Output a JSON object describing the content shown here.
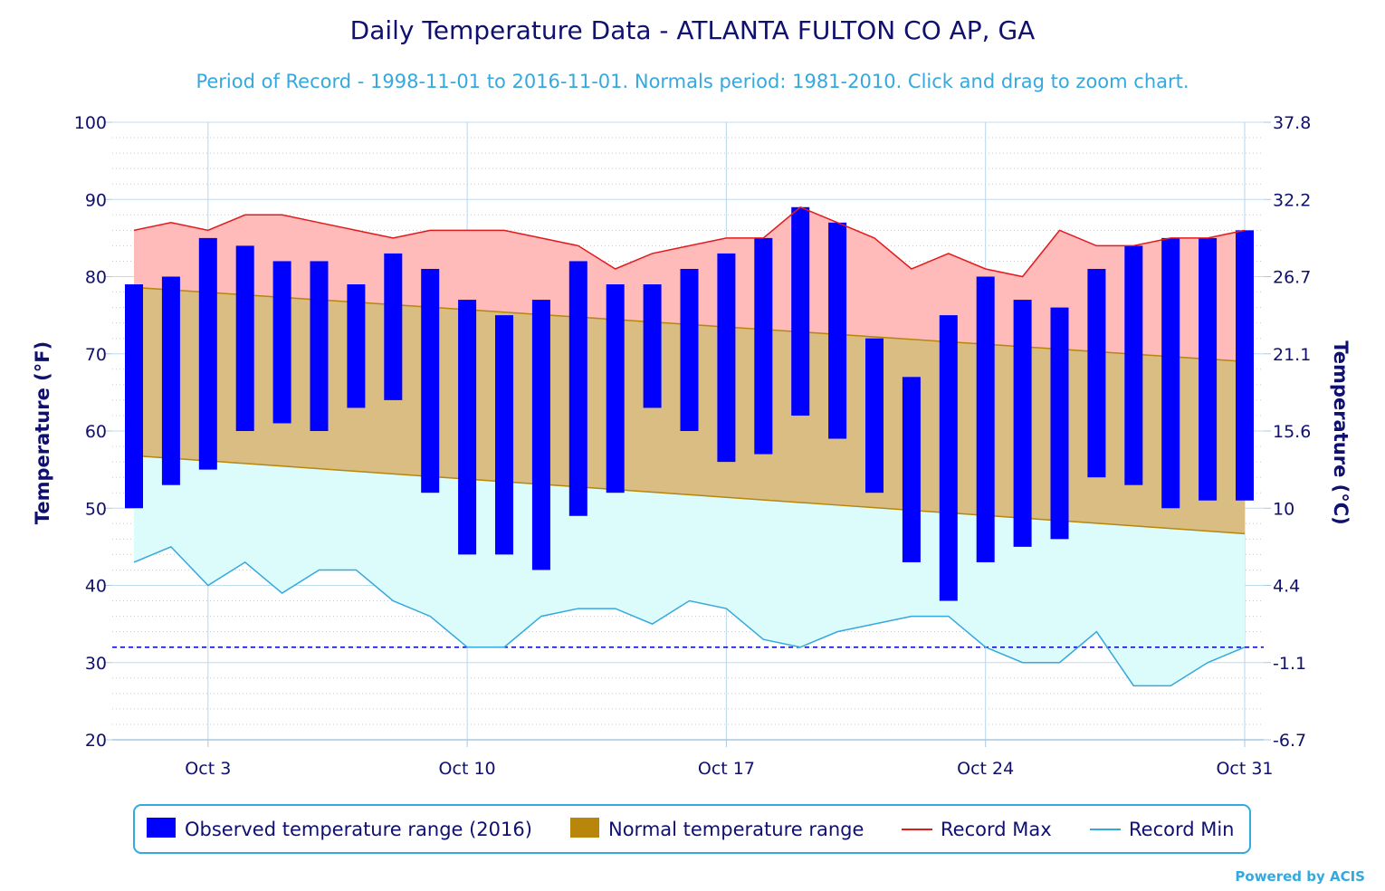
{
  "chart_data": {
    "type": "bar",
    "title": "Daily Temperature Data - ATLANTA FULTON CO AP, GA",
    "subtitle": "Period of Record - 1998-11-01 to 2016-11-01. Normals period: 1981-2010. Click and drag to zoom chart.",
    "ylabel": "Temperature (°F)",
    "ylabel_right": "Temperature (°C)",
    "ylim": [
      20,
      100
    ],
    "y_ticks": [
      20,
      30,
      40,
      50,
      60,
      70,
      80,
      90,
      100
    ],
    "y_ticks_right": [
      "-6.7",
      "-1.1",
      "4.4",
      "10",
      "15.6",
      "21.1",
      "26.7",
      "32.2",
      "37.8"
    ],
    "x_ticks": [
      {
        "day": 3,
        "label": "Oct 3"
      },
      {
        "day": 10,
        "label": "Oct 10"
      },
      {
        "day": 17,
        "label": "Oct 17"
      },
      {
        "day": 24,
        "label": "Oct 24"
      },
      {
        "day": 31,
        "label": "Oct 31"
      }
    ],
    "freezing_line": 32,
    "grid": true,
    "legend_position": "bottom",
    "days": [
      1,
      2,
      3,
      4,
      5,
      6,
      7,
      8,
      9,
      10,
      11,
      12,
      13,
      14,
      15,
      16,
      17,
      18,
      19,
      20,
      21,
      22,
      23,
      24,
      25,
      26,
      27,
      28,
      29,
      30,
      31
    ],
    "series": [
      {
        "name": "Observed temperature range (2016)",
        "color": "#0000ff",
        "high": [
          79,
          80,
          85,
          84,
          82,
          82,
          79,
          83,
          81,
          77,
          75,
          77,
          82,
          79,
          79,
          81,
          83,
          85,
          89,
          87,
          72,
          67,
          75,
          80,
          77,
          76,
          81,
          84,
          85,
          85,
          86
        ],
        "low": [
          50,
          53,
          55,
          60,
          61,
          60,
          63,
          64,
          52,
          44,
          44,
          42,
          49,
          52,
          63,
          60,
          56,
          57,
          62,
          59,
          52,
          43,
          38,
          43,
          45,
          46,
          54,
          53,
          50,
          51,
          51
        ]
      },
      {
        "name": "Normal temperature range",
        "color": "#b8860b",
        "high_start": 78.6,
        "high_end": 69.0,
        "low_start": 56.8,
        "low_end": 46.7
      },
      {
        "name": "Record Max",
        "color": "#e31a1c",
        "values": [
          86,
          87,
          86,
          88,
          88,
          87,
          86,
          85,
          86,
          86,
          86,
          85,
          84,
          81,
          83,
          84,
          85,
          85,
          89,
          87,
          85,
          81,
          83,
          81,
          80,
          86,
          84,
          84,
          85,
          85,
          86
        ]
      },
      {
        "name": "Record Min",
        "color": "#35a8de",
        "values": [
          43,
          45,
          40,
          43,
          39,
          42,
          42,
          38,
          36,
          32,
          32,
          36,
          37,
          37,
          35,
          38,
          37,
          33,
          32,
          34,
          35,
          36,
          36,
          32,
          30,
          30,
          34,
          27,
          27,
          30,
          32
        ]
      }
    ]
  },
  "legend": {
    "items": [
      {
        "label": "Observed temperature range (2016)",
        "kind": "box",
        "color": "#0000ff"
      },
      {
        "label": "Normal temperature range",
        "kind": "box",
        "color": "#b8860b"
      },
      {
        "label": "Record Max",
        "kind": "line",
        "color": "#e31a1c"
      },
      {
        "label": "Record Min",
        "kind": "line",
        "color": "#35a8de"
      }
    ]
  },
  "credit": "Powered by ACIS"
}
